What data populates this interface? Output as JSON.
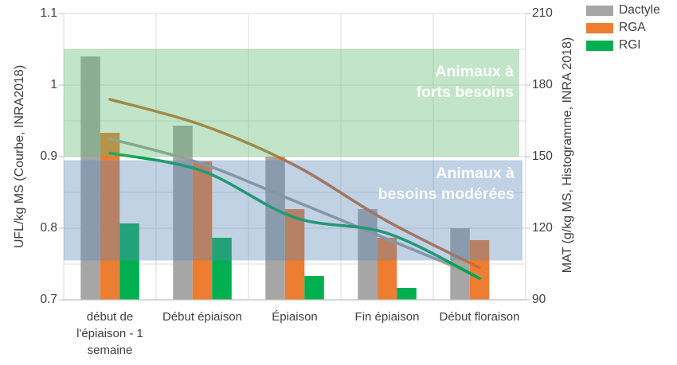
{
  "chart_data": {
    "type": "combo-bar-line",
    "title": "",
    "categories": [
      "début de l'épiaison - 1 semaine",
      "Début épiaison",
      "Épiaison",
      "Fin épiaison",
      "Début floraison"
    ],
    "left_axis": {
      "label": "UFL/kg MS (Courbe, INRA2018)",
      "min": 0.7,
      "max": 1.1,
      "ticks": [
        "1.1",
        "1",
        "0.9",
        "0.8",
        "0.7"
      ],
      "applies_to": "line_series"
    },
    "right_axis": {
      "label": "MAT (g/kg MS, Histogramme, INRA 2018)",
      "min": 90,
      "max": 210,
      "ticks": [
        210,
        180,
        150,
        120,
        90
      ],
      "applies_to": "bar_series"
    },
    "bar_series": [
      {
        "name": "Dactyle",
        "color": "#A6A6A6",
        "values": [
          192,
          163,
          150,
          128,
          120
        ]
      },
      {
        "name": "RGA",
        "color": "#ED7D31",
        "values": [
          160,
          148,
          128,
          116,
          115
        ]
      },
      {
        "name": "RGI",
        "color": "#00B050",
        "values": [
          122,
          116,
          100,
          95,
          null
        ]
      }
    ],
    "line_series": [
      {
        "name": "Dactyle",
        "color": "#9E9E9E",
        "values": [
          0.925,
          0.89,
          0.838,
          0.785,
          0.732
        ]
      },
      {
        "name": "RGA",
        "color": "#C96E2E",
        "values": [
          0.98,
          0.944,
          0.888,
          0.81,
          0.745
        ]
      },
      {
        "name": "RGI",
        "color": "#00A24E",
        "values": [
          0.905,
          0.88,
          0.815,
          0.793,
          0.73
        ]
      }
    ],
    "bands": [
      {
        "id": "green",
        "label": "Animaux à forts besoins",
        "from": 0.9,
        "to": 1.05,
        "color": "#5FB870",
        "opacity": 0.38,
        "text_color": "#FFFFFF"
      },
      {
        "id": "blue",
        "label": "Animaux à besoins modérées",
        "from": 0.755,
        "to": 0.895,
        "color": "#5C8ABA",
        "opacity": 0.38,
        "text_color": "#FFFFFF"
      }
    ],
    "legend": [
      {
        "label": "Dactyle",
        "color": "#A6A6A6"
      },
      {
        "label": "RGA",
        "color": "#ED7D31"
      },
      {
        "label": "RGI",
        "color": "#00B050"
      }
    ],
    "grid": {
      "horizontal_step_left_axis": 0.05,
      "vertical": "category-boundaries",
      "visible": true
    },
    "legend_position": "top-right"
  }
}
